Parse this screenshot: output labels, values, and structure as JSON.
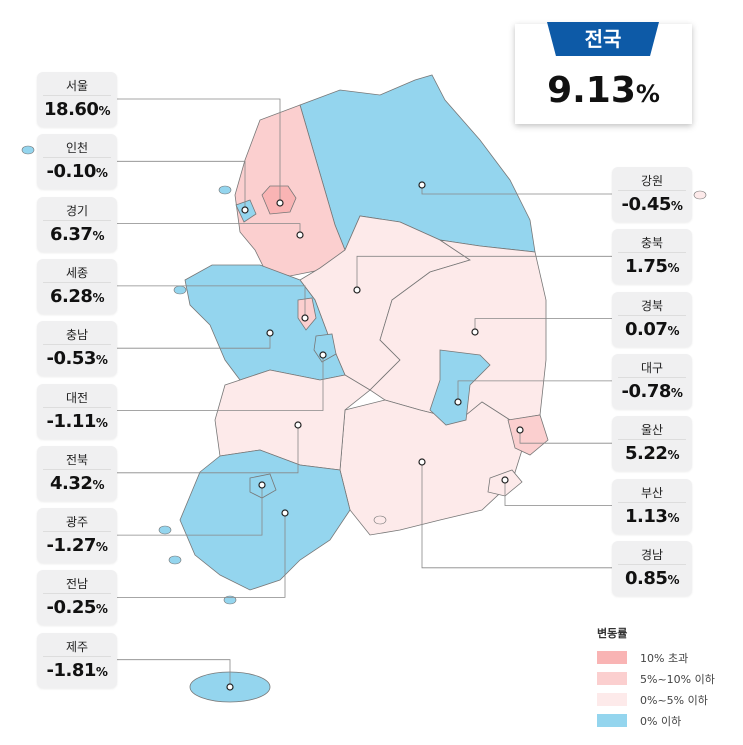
{
  "national": {
    "label": "전국",
    "value": "9.13",
    "unit": "%"
  },
  "legend": {
    "title": "변동률",
    "items": [
      {
        "label": "10% 초과",
        "color": "#f9b4b4"
      },
      {
        "label": "5%~10% 이하",
        "color": "#fbcfcf"
      },
      {
        "label": "0%~5% 이하",
        "color": "#fdeaea"
      },
      {
        "label": "0% 이하",
        "color": "#94d5ee"
      }
    ]
  },
  "regions": {
    "left": [
      {
        "name": "서울",
        "value": "18.60",
        "unit": "%",
        "category": 0
      },
      {
        "name": "인천",
        "value": "-0.10",
        "unit": "%",
        "category": 3
      },
      {
        "name": "경기",
        "value": "6.37",
        "unit": "%",
        "category": 1
      },
      {
        "name": "세종",
        "value": "6.28",
        "unit": "%",
        "category": 1
      },
      {
        "name": "충남",
        "value": "-0.53",
        "unit": "%",
        "category": 3
      },
      {
        "name": "대전",
        "value": "-1.11",
        "unit": "%",
        "category": 3
      },
      {
        "name": "전북",
        "value": "4.32",
        "unit": "%",
        "category": 2
      },
      {
        "name": "광주",
        "value": "-1.27",
        "unit": "%",
        "category": 3
      },
      {
        "name": "전남",
        "value": "-0.25",
        "unit": "%",
        "category": 3
      },
      {
        "name": "제주",
        "value": "-1.81",
        "unit": "%",
        "category": 3
      }
    ],
    "right": [
      {
        "name": "강원",
        "value": "-0.45",
        "unit": "%",
        "category": 3
      },
      {
        "name": "충북",
        "value": "1.75",
        "unit": "%",
        "category": 2
      },
      {
        "name": "경북",
        "value": "0.07",
        "unit": "%",
        "category": 2
      },
      {
        "name": "대구",
        "value": "-0.78",
        "unit": "%",
        "category": 3
      },
      {
        "name": "울산",
        "value": "5.22",
        "unit": "%",
        "category": 1
      },
      {
        "name": "부산",
        "value": "1.13",
        "unit": "%",
        "category": 2
      },
      {
        "name": "경남",
        "value": "0.85",
        "unit": "%",
        "category": 2
      }
    ]
  }
}
